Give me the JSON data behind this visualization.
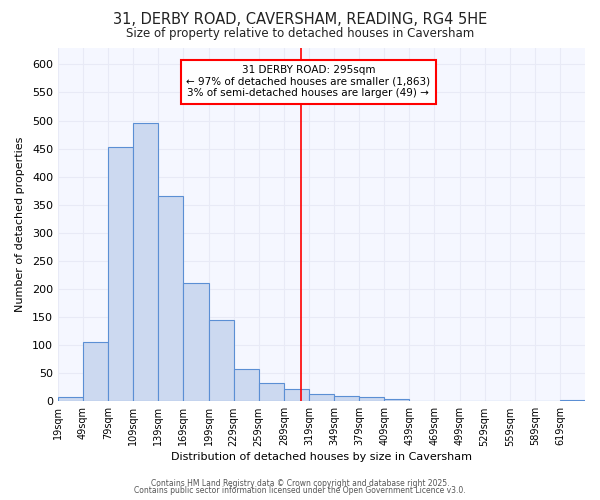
{
  "title_line1": "31, DERBY ROAD, CAVERSHAM, READING, RG4 5HE",
  "title_line2": "Size of property relative to detached houses in Caversham",
  "xlabel": "Distribution of detached houses by size in Caversham",
  "ylabel": "Number of detached properties",
  "bar_color": "#ccd9f0",
  "bar_edge_color": "#5b8fd4",
  "categories": [
    "19sqm",
    "49sqm",
    "79sqm",
    "109sqm",
    "139sqm",
    "169sqm",
    "199sqm",
    "229sqm",
    "259sqm",
    "289sqm",
    "319sqm",
    "349sqm",
    "379sqm",
    "409sqm",
    "439sqm",
    "469sqm",
    "499sqm",
    "529sqm",
    "559sqm",
    "589sqm",
    "619sqm"
  ],
  "values": [
    7,
    105,
    452,
    495,
    365,
    210,
    144,
    57,
    32,
    22,
    13,
    10,
    7,
    5,
    0,
    0,
    0,
    0,
    0,
    0,
    2
  ],
  "red_line_x": 295,
  "bin_width": 30,
  "annotation_title": "31 DERBY ROAD: 295sqm",
  "annotation_line2": "← 97% of detached houses are smaller (1,863)",
  "annotation_line3": "3% of semi-detached houses are larger (49) →",
  "ylim": [
    0,
    630
  ],
  "yticks": [
    0,
    50,
    100,
    150,
    200,
    250,
    300,
    350,
    400,
    450,
    500,
    550,
    600
  ],
  "background_color": "#ffffff",
  "plot_bg_color": "#f5f7ff",
  "grid_color": "#e8eaf6",
  "footer_line1": "Contains HM Land Registry data © Crown copyright and database right 2025.",
  "footer_line2": "Contains public sector information licensed under the Open Government Licence v3.0."
}
